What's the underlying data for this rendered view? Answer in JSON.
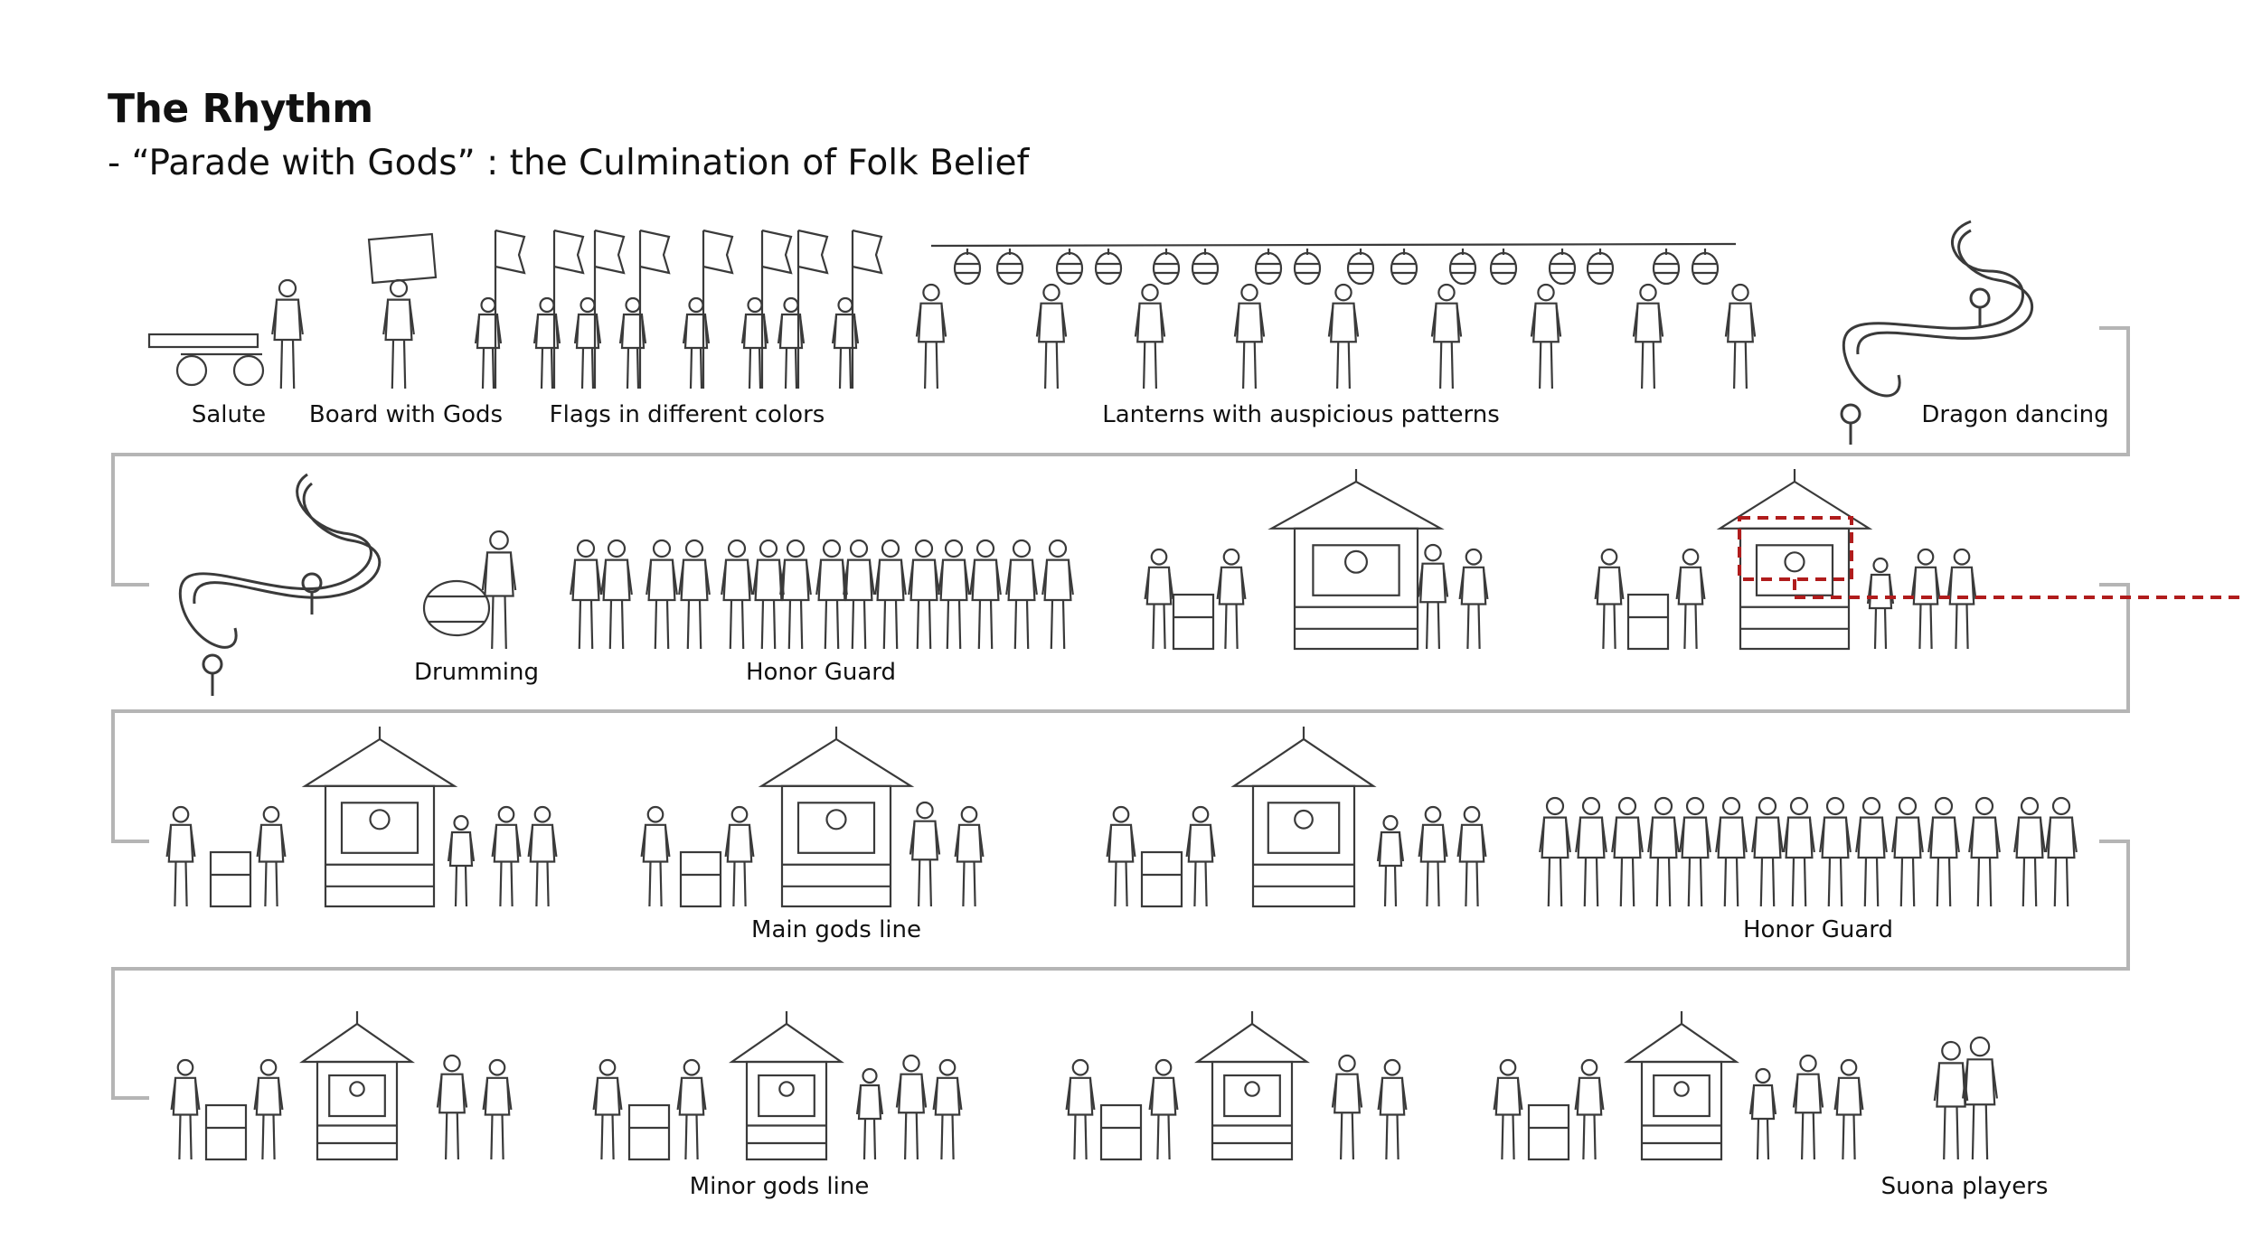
{
  "title": "The Rhythm",
  "subtitle": "- “Parade with Gods” : the Culmination of Folk Belief",
  "colors": {
    "path": "#b5b5b5",
    "line_art": "#3a3a3a",
    "highlight": "#b01c1c"
  },
  "rows": [
    {
      "labels": [
        "Salute",
        "Board with Gods",
        "Flags in different colors",
        "Lanterns with auspicious patterns",
        "Dragon dancing"
      ]
    },
    {
      "labels": [
        "Drumming",
        "Honor Guard"
      ]
    },
    {
      "labels": [
        "Main gods line",
        "Honor Guard"
      ]
    },
    {
      "labels": [
        "Minor gods line",
        "Suona players"
      ]
    }
  ]
}
